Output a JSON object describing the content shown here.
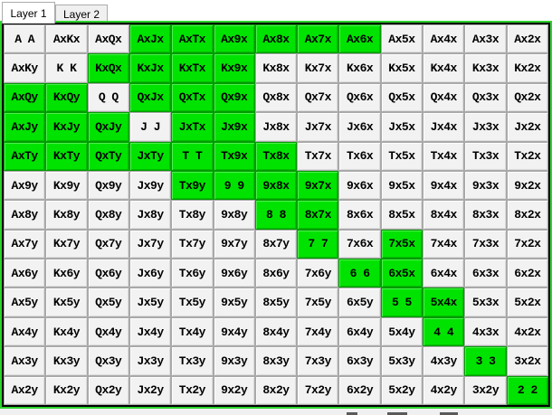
{
  "tabs": [
    {
      "label": "Layer 1",
      "selected": true
    },
    {
      "label": "Layer 2",
      "selected": false
    }
  ],
  "colors": {
    "highlight_green": "#00e300",
    "panel_frame_green": "#2ed32e",
    "panel_frame_inner": "#000000",
    "cell_face": "#f2f2f2",
    "cell_text": "#000000"
  },
  "grid": {
    "ranks": [
      "A",
      "K",
      "Q",
      "J",
      "T",
      "9",
      "8",
      "7",
      "6",
      "5",
      "4",
      "3",
      "2"
    ],
    "rows": [
      {
        "cells": [
          [
            "A A",
            0
          ],
          [
            "AxKx",
            0
          ],
          [
            "AxQx",
            0
          ],
          [
            "AxJx",
            1
          ],
          [
            "AxTx",
            1
          ],
          [
            "Ax9x",
            1
          ],
          [
            "Ax8x",
            1
          ],
          [
            "Ax7x",
            1
          ],
          [
            "Ax6x",
            1
          ],
          [
            "Ax5x",
            0
          ],
          [
            "Ax4x",
            0
          ],
          [
            "Ax3x",
            0
          ],
          [
            "Ax2x",
            0
          ]
        ]
      },
      {
        "cells": [
          [
            "AxKy",
            0
          ],
          [
            "K K",
            0
          ],
          [
            "KxQx",
            1
          ],
          [
            "KxJx",
            1
          ],
          [
            "KxTx",
            1
          ],
          [
            "Kx9x",
            1
          ],
          [
            "Kx8x",
            0
          ],
          [
            "Kx7x",
            0
          ],
          [
            "Kx6x",
            0
          ],
          [
            "Kx5x",
            0
          ],
          [
            "Kx4x",
            0
          ],
          [
            "Kx3x",
            0
          ],
          [
            "Kx2x",
            0
          ]
        ]
      },
      {
        "cells": [
          [
            "AxQy",
            1
          ],
          [
            "KxQy",
            1
          ],
          [
            "Q Q",
            0
          ],
          [
            "QxJx",
            1
          ],
          [
            "QxTx",
            1
          ],
          [
            "Qx9x",
            1
          ],
          [
            "Qx8x",
            0
          ],
          [
            "Qx7x",
            0
          ],
          [
            "Qx6x",
            0
          ],
          [
            "Qx5x",
            0
          ],
          [
            "Qx4x",
            0
          ],
          [
            "Qx3x",
            0
          ],
          [
            "Qx2x",
            0
          ]
        ]
      },
      {
        "cells": [
          [
            "AxJy",
            1
          ],
          [
            "KxJy",
            1
          ],
          [
            "QxJy",
            1
          ],
          [
            "J J",
            0
          ],
          [
            "JxTx",
            1
          ],
          [
            "Jx9x",
            1
          ],
          [
            "Jx8x",
            0
          ],
          [
            "Jx7x",
            0
          ],
          [
            "Jx6x",
            0
          ],
          [
            "Jx5x",
            0
          ],
          [
            "Jx4x",
            0
          ],
          [
            "Jx3x",
            0
          ],
          [
            "Jx2x",
            0
          ]
        ]
      },
      {
        "cells": [
          [
            "AxTy",
            1
          ],
          [
            "KxTy",
            1
          ],
          [
            "QxTy",
            1
          ],
          [
            "JxTy",
            1
          ],
          [
            "T T",
            1
          ],
          [
            "Tx9x",
            1
          ],
          [
            "Tx8x",
            1
          ],
          [
            "Tx7x",
            0
          ],
          [
            "Tx6x",
            0
          ],
          [
            "Tx5x",
            0
          ],
          [
            "Tx4x",
            0
          ],
          [
            "Tx3x",
            0
          ],
          [
            "Tx2x",
            0
          ]
        ]
      },
      {
        "cells": [
          [
            "Ax9y",
            0
          ],
          [
            "Kx9y",
            0
          ],
          [
            "Qx9y",
            0
          ],
          [
            "Jx9y",
            0
          ],
          [
            "Tx9y",
            1
          ],
          [
            "9 9",
            1
          ],
          [
            "9x8x",
            1
          ],
          [
            "9x7x",
            1
          ],
          [
            "9x6x",
            0
          ],
          [
            "9x5x",
            0
          ],
          [
            "9x4x",
            0
          ],
          [
            "9x3x",
            0
          ],
          [
            "9x2x",
            0
          ]
        ]
      },
      {
        "cells": [
          [
            "Ax8y",
            0
          ],
          [
            "Kx8y",
            0
          ],
          [
            "Qx8y",
            0
          ],
          [
            "Jx8y",
            0
          ],
          [
            "Tx8y",
            0
          ],
          [
            "9x8y",
            0
          ],
          [
            "8 8",
            1
          ],
          [
            "8x7x",
            1
          ],
          [
            "8x6x",
            0
          ],
          [
            "8x5x",
            0
          ],
          [
            "8x4x",
            0
          ],
          [
            "8x3x",
            0
          ],
          [
            "8x2x",
            0
          ]
        ]
      },
      {
        "cells": [
          [
            "Ax7y",
            0
          ],
          [
            "Kx7y",
            0
          ],
          [
            "Qx7y",
            0
          ],
          [
            "Jx7y",
            0
          ],
          [
            "Tx7y",
            0
          ],
          [
            "9x7y",
            0
          ],
          [
            "8x7y",
            0
          ],
          [
            "7 7",
            1
          ],
          [
            "7x6x",
            0
          ],
          [
            "7x5x",
            1
          ],
          [
            "7x4x",
            0
          ],
          [
            "7x3x",
            0
          ],
          [
            "7x2x",
            0
          ]
        ]
      },
      {
        "cells": [
          [
            "Ax6y",
            0
          ],
          [
            "Kx6y",
            0
          ],
          [
            "Qx6y",
            0
          ],
          [
            "Jx6y",
            0
          ],
          [
            "Tx6y",
            0
          ],
          [
            "9x6y",
            0
          ],
          [
            "8x6y",
            0
          ],
          [
            "7x6y",
            0
          ],
          [
            "6 6",
            1
          ],
          [
            "6x5x",
            1
          ],
          [
            "6x4x",
            0
          ],
          [
            "6x3x",
            0
          ],
          [
            "6x2x",
            0
          ]
        ]
      },
      {
        "cells": [
          [
            "Ax5y",
            0
          ],
          [
            "Kx5y",
            0
          ],
          [
            "Qx5y",
            0
          ],
          [
            "Jx5y",
            0
          ],
          [
            "Tx5y",
            0
          ],
          [
            "9x5y",
            0
          ],
          [
            "8x5y",
            0
          ],
          [
            "7x5y",
            0
          ],
          [
            "6x5y",
            0
          ],
          [
            "5 5",
            1
          ],
          [
            "5x4x",
            1
          ],
          [
            "5x3x",
            0
          ],
          [
            "5x2x",
            0
          ]
        ]
      },
      {
        "cells": [
          [
            "Ax4y",
            0
          ],
          [
            "Kx4y",
            0
          ],
          [
            "Qx4y",
            0
          ],
          [
            "Jx4y",
            0
          ],
          [
            "Tx4y",
            0
          ],
          [
            "9x4y",
            0
          ],
          [
            "8x4y",
            0
          ],
          [
            "7x4y",
            0
          ],
          [
            "6x4y",
            0
          ],
          [
            "5x4y",
            0
          ],
          [
            "4 4",
            1
          ],
          [
            "4x3x",
            0
          ],
          [
            "4x2x",
            0
          ]
        ]
      },
      {
        "cells": [
          [
            "Ax3y",
            0
          ],
          [
            "Kx3y",
            0
          ],
          [
            "Qx3y",
            0
          ],
          [
            "Jx3y",
            0
          ],
          [
            "Tx3y",
            0
          ],
          [
            "9x3y",
            0
          ],
          [
            "8x3y",
            0
          ],
          [
            "7x3y",
            0
          ],
          [
            "6x3y",
            0
          ],
          [
            "5x3y",
            0
          ],
          [
            "4x3y",
            0
          ],
          [
            "3 3",
            1
          ],
          [
            "3x2x",
            0
          ]
        ]
      },
      {
        "cells": [
          [
            "Ax2y",
            0
          ],
          [
            "Kx2y",
            0
          ],
          [
            "Qx2y",
            0
          ],
          [
            "Jx2y",
            0
          ],
          [
            "Tx2y",
            0
          ],
          [
            "9x2y",
            0
          ],
          [
            "8x2y",
            0
          ],
          [
            "7x2y",
            0
          ],
          [
            "6x2y",
            0
          ],
          [
            "5x2y",
            0
          ],
          [
            "4x2y",
            0
          ],
          [
            "3x2y",
            0
          ],
          [
            "2 2",
            1
          ]
        ]
      }
    ]
  }
}
